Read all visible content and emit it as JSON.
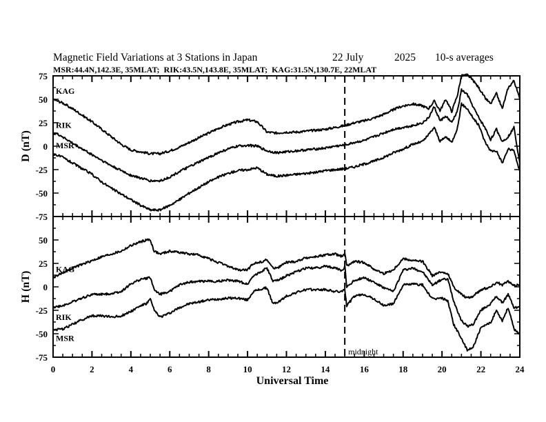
{
  "chart_data": [
    {
      "type": "line",
      "panel": "D",
      "title": "Magnetic Field Variations at 3 Stations in Japan",
      "date_day": "22 July",
      "date_year": "2025",
      "averaging": "10-s averages",
      "subtitle": "MSR:44.4N,142.3E, 35MLAT;  RIK:43.5N,143.8E, 35MLAT;  KAG:31.5N,130.7E, 22MLAT",
      "xlabel": "Universal Time",
      "ylabel": "D (nT)",
      "xlim": [
        0,
        24
      ],
      "ylim": [
        -75,
        75
      ],
      "xticks": [
        0,
        2,
        4,
        6,
        8,
        10,
        12,
        14,
        16,
        18,
        20,
        22,
        24
      ],
      "yticks": [
        75,
        50,
        25,
        0,
        -25,
        -50,
        -75
      ],
      "grid": false,
      "marker_line": {
        "x": 15,
        "label": "midnight"
      },
      "series": [
        {
          "name": "KAG",
          "x": [
            0,
            0.5,
            1,
            1.5,
            2,
            2.5,
            3,
            3.5,
            4,
            4.5,
            5,
            5.5,
            6,
            6.5,
            7,
            7.5,
            8,
            8.5,
            9,
            9.5,
            10,
            10.5,
            11,
            11.5,
            12,
            12.5,
            13,
            13.5,
            14,
            14.5,
            15,
            15.5,
            16,
            16.5,
            17,
            17.5,
            18,
            18.5,
            19,
            19.3,
            19.6,
            19.9,
            20.2,
            20.5,
            20.8,
            21,
            21.3,
            21.6,
            21.9,
            22.2,
            22.5,
            22.8,
            23.1,
            23.4,
            23.7,
            24
          ],
          "values": [
            50,
            46,
            40,
            33,
            26,
            18,
            10,
            2,
            -4,
            -6,
            -8,
            -8,
            -5,
            -1,
            4,
            9,
            14,
            19,
            23,
            26,
            28,
            26,
            15,
            14,
            15,
            15,
            16,
            17,
            18,
            20,
            22,
            25,
            27,
            30,
            34,
            39,
            43,
            45,
            43,
            40,
            48,
            38,
            50,
            37,
            55,
            75,
            76,
            70,
            62,
            52,
            45,
            56,
            40,
            62,
            70,
            50
          ]
        },
        {
          "name": "RIK",
          "x": [
            0,
            0.5,
            1,
            1.5,
            2,
            2.5,
            3,
            3.5,
            4,
            4.5,
            5,
            5.5,
            6,
            6.5,
            7,
            7.5,
            8,
            8.5,
            9,
            9.5,
            10,
            10.5,
            11,
            11.5,
            12,
            12.5,
            13,
            13.5,
            14,
            14.5,
            15,
            15.5,
            16,
            16.5,
            17,
            17.5,
            18,
            18.5,
            19,
            19.3,
            19.6,
            19.9,
            20.2,
            20.5,
            20.8,
            21,
            21.3,
            21.6,
            21.9,
            22.2,
            22.5,
            22.8,
            23.1,
            23.4,
            23.7,
            24
          ],
          "values": [
            15,
            10,
            3,
            -3,
            -9,
            -15,
            -21,
            -26,
            -31,
            -34,
            -37,
            -37,
            -33,
            -27,
            -22,
            -17,
            -12,
            -7,
            -3,
            0,
            1,
            0,
            -5,
            -7,
            -6,
            -5,
            -4,
            -3,
            -2,
            0,
            1,
            4,
            6,
            10,
            14,
            18,
            20,
            22,
            25,
            30,
            42,
            27,
            32,
            25,
            38,
            60,
            55,
            42,
            30,
            20,
            7,
            18,
            5,
            10,
            20,
            -18
          ]
        },
        {
          "name": "MSR",
          "x": [
            0,
            0.5,
            1,
            1.5,
            2,
            2.5,
            3,
            3.5,
            4,
            4.5,
            5,
            5.5,
            6,
            6.5,
            7,
            7.5,
            8,
            8.5,
            9,
            9.5,
            10,
            10.5,
            11,
            11.5,
            12,
            12.5,
            13,
            13.5,
            14,
            14.5,
            15,
            15.5,
            16,
            16.5,
            17,
            17.5,
            18,
            18.5,
            19,
            19.3,
            19.6,
            19.9,
            20.2,
            20.5,
            20.8,
            21,
            21.3,
            21.6,
            21.9,
            22.2,
            22.5,
            22.8,
            23.1,
            23.4,
            23.7,
            24
          ],
          "values": [
            -8,
            -12,
            -18,
            -24,
            -30,
            -38,
            -45,
            -51,
            -57,
            -63,
            -68,
            -68,
            -63,
            -57,
            -50,
            -44,
            -38,
            -33,
            -29,
            -26,
            -25,
            -23,
            -30,
            -32,
            -31,
            -30,
            -29,
            -28,
            -26,
            -25,
            -24,
            -22,
            -19,
            -16,
            -12,
            -7,
            -3,
            2,
            5,
            12,
            20,
            5,
            10,
            4,
            20,
            45,
            40,
            30,
            22,
            5,
            -5,
            -5,
            -18,
            -3,
            -5,
            -27
          ]
        }
      ],
      "annotations": [
        "KAG",
        "RIK",
        "MSR"
      ]
    },
    {
      "type": "line",
      "panel": "H",
      "xlabel": "Universal Time",
      "ylabel": "H (nT)",
      "xlim": [
        0,
        24
      ],
      "ylim": [
        -75,
        75
      ],
      "xticks": [
        0,
        2,
        4,
        6,
        8,
        10,
        12,
        14,
        16,
        18,
        20,
        22,
        24
      ],
      "yticks": [
        50,
        25,
        0,
        -25,
        -50,
        -75
      ],
      "grid": false,
      "marker_line": {
        "x": 15,
        "label": "midnight"
      },
      "series": [
        {
          "name": "KAG",
          "x": [
            0,
            0.5,
            1,
            1.5,
            2,
            2.5,
            3,
            3.5,
            4,
            4.5,
            4.8,
            5,
            5.2,
            5.5,
            6,
            6.5,
            7,
            7.5,
            8,
            8.5,
            9,
            9.5,
            10,
            10.3,
            10.6,
            11,
            11.3,
            11.6,
            12,
            12.5,
            13,
            13.5,
            14,
            14.5,
            14.9,
            15,
            15.1,
            15.5,
            16,
            16.5,
            17,
            17.5,
            18,
            18.5,
            19,
            19.5,
            20,
            20.3,
            20.6,
            21,
            21.3,
            21.6,
            22,
            22.5,
            22.8,
            23.1,
            23.4,
            23.7,
            24
          ],
          "values": [
            10,
            15,
            20,
            24,
            28,
            32,
            35,
            38,
            44,
            48,
            50,
            50,
            38,
            35,
            38,
            37,
            35,
            34,
            30,
            26,
            22,
            18,
            18,
            25,
            26,
            29,
            20,
            21,
            26,
            27,
            31,
            32,
            34,
            35,
            32,
            36,
            22,
            27,
            26,
            19,
            14,
            18,
            30,
            28,
            27,
            12,
            16,
            14,
            0,
            -8,
            -12,
            -10,
            -3,
            0,
            5,
            2,
            6,
            1,
            3
          ]
        },
        {
          "name": "RIK",
          "x": [
            0,
            0.5,
            1,
            1.5,
            2,
            2.5,
            3,
            3.5,
            4,
            4.5,
            4.8,
            5,
            5.2,
            5.5,
            6,
            6.5,
            7,
            7.5,
            8,
            8.5,
            9,
            9.5,
            10,
            10.3,
            10.6,
            11,
            11.3,
            11.6,
            12,
            12.5,
            13,
            13.5,
            14,
            14.5,
            14.9,
            15,
            15.1,
            15.5,
            16,
            16.5,
            17,
            17.5,
            18,
            18.5,
            19,
            19.5,
            20,
            20.3,
            20.6,
            21,
            21.3,
            21.6,
            22,
            22.5,
            22.8,
            23.1,
            23.4,
            23.7,
            24
          ],
          "values": [
            -22,
            -20,
            -16,
            -12,
            -8,
            -8,
            -7,
            -5,
            3,
            8,
            9,
            10,
            -3,
            -8,
            -5,
            2,
            5,
            6,
            6,
            6,
            7,
            6,
            3,
            12,
            15,
            20,
            6,
            7,
            12,
            16,
            20,
            20,
            22,
            20,
            17,
            22,
            0,
            7,
            10,
            5,
            -1,
            -5,
            18,
            20,
            16,
            2,
            8,
            8,
            -15,
            -36,
            -42,
            -40,
            -25,
            -18,
            -10,
            -17,
            -8,
            -22,
            -22
          ]
        },
        {
          "name": "MSR",
          "x": [
            0,
            0.5,
            1,
            1.5,
            2,
            2.5,
            3,
            3.5,
            4,
            4.5,
            4.8,
            5,
            5.2,
            5.5,
            6,
            6.5,
            7,
            7.5,
            8,
            8.5,
            9,
            9.5,
            10,
            10.3,
            10.6,
            11,
            11.3,
            11.6,
            12,
            12.5,
            13,
            13.5,
            14,
            14.5,
            14.9,
            15,
            15.1,
            15.5,
            16,
            16.5,
            17,
            17.5,
            18,
            18.5,
            19,
            19.5,
            20,
            20.3,
            20.6,
            21,
            21.3,
            21.6,
            22,
            22.5,
            22.8,
            23.1,
            23.4,
            23.7,
            24
          ],
          "values": [
            -46,
            -45,
            -40,
            -35,
            -31,
            -31,
            -32,
            -31,
            -26,
            -20,
            -18,
            -13,
            -25,
            -32,
            -28,
            -22,
            -18,
            -16,
            -14,
            -13,
            -12,
            -12,
            -14,
            -5,
            -3,
            -1,
            -18,
            -16,
            -10,
            -6,
            -3,
            -3,
            -3,
            -5,
            -5,
            -2,
            -20,
            -10,
            -8,
            -13,
            -20,
            -18,
            2,
            3,
            2,
            -13,
            -12,
            -15,
            -40,
            -55,
            -68,
            -64,
            -44,
            -38,
            -25,
            -36,
            -22,
            -45,
            -50
          ]
        }
      ],
      "annotations": [
        "KAG",
        "RIK",
        "MSR"
      ]
    }
  ]
}
